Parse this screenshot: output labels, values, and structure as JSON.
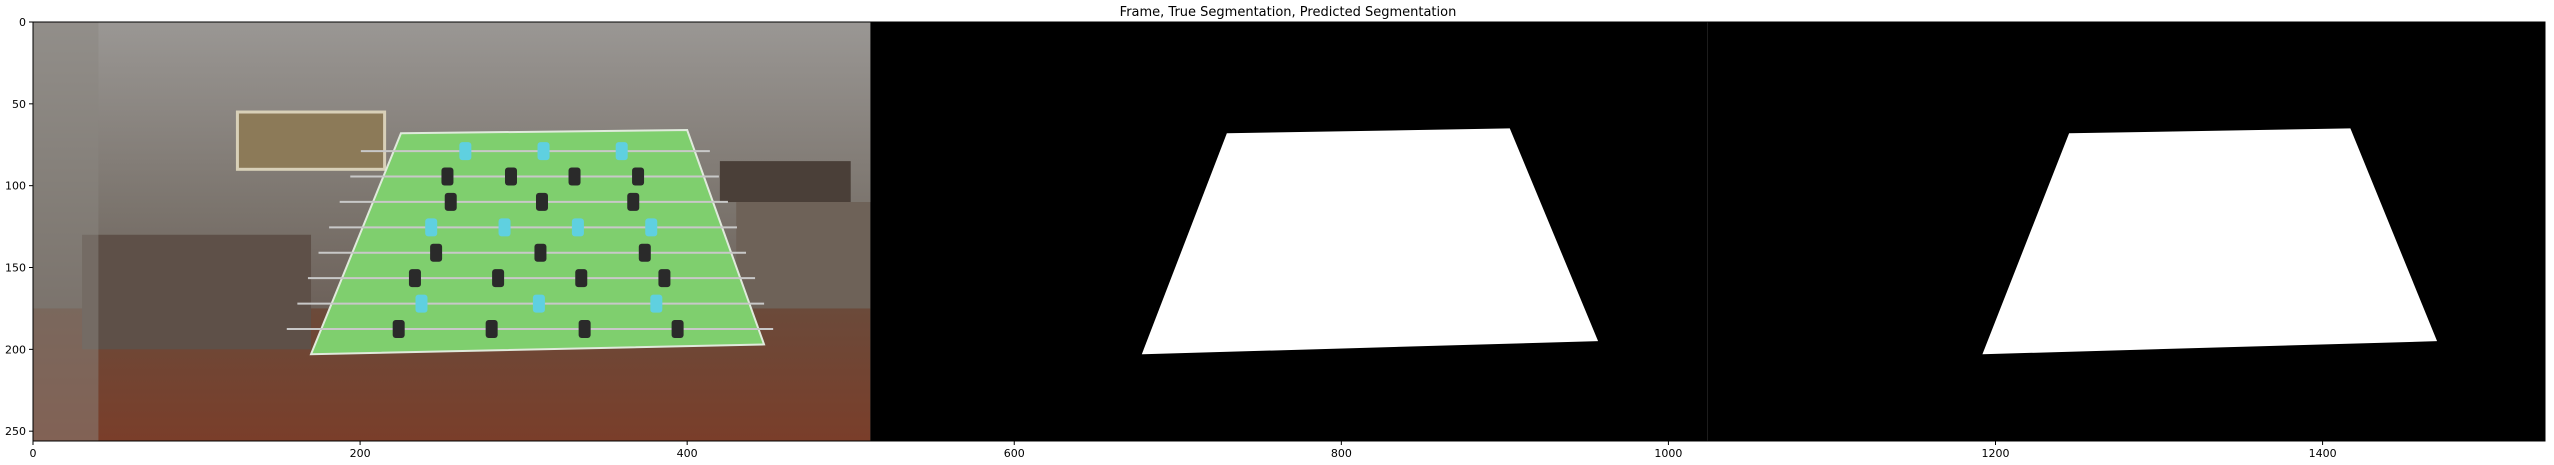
{
  "chart_data": {
    "type": "image",
    "title": "Frame, True Segmentation, Predicted Segmentation",
    "xlim": [
      0,
      1536
    ],
    "ylim": [
      256,
      0
    ],
    "x_ticks": [
      0,
      200,
      400,
      600,
      800,
      1000,
      1200,
      1400
    ],
    "y_ticks": [
      0,
      50,
      100,
      150,
      200,
      250
    ],
    "panels": [
      {
        "name": "Frame",
        "x_range": [
          0,
          512
        ],
        "content": "photo of a foosball table in a room, table area overlaid in green"
      },
      {
        "name": "True Segmentation",
        "x_range": [
          512,
          1024
        ],
        "mask_quad": [
          [
            730,
            68
          ],
          [
            903,
            65
          ],
          [
            957,
            195
          ],
          [
            678,
            203
          ]
        ]
      },
      {
        "name": "Predicted Segmentation",
        "x_range": [
          1024,
          1536
        ],
        "mask_quad": [
          [
            1245,
            68
          ],
          [
            1417,
            65
          ],
          [
            1470,
            195
          ],
          [
            1192,
            203
          ]
        ]
      }
    ],
    "background_color": "#000000",
    "mask_color": "#ffffff",
    "overlay_color": "#7fcf6e"
  }
}
